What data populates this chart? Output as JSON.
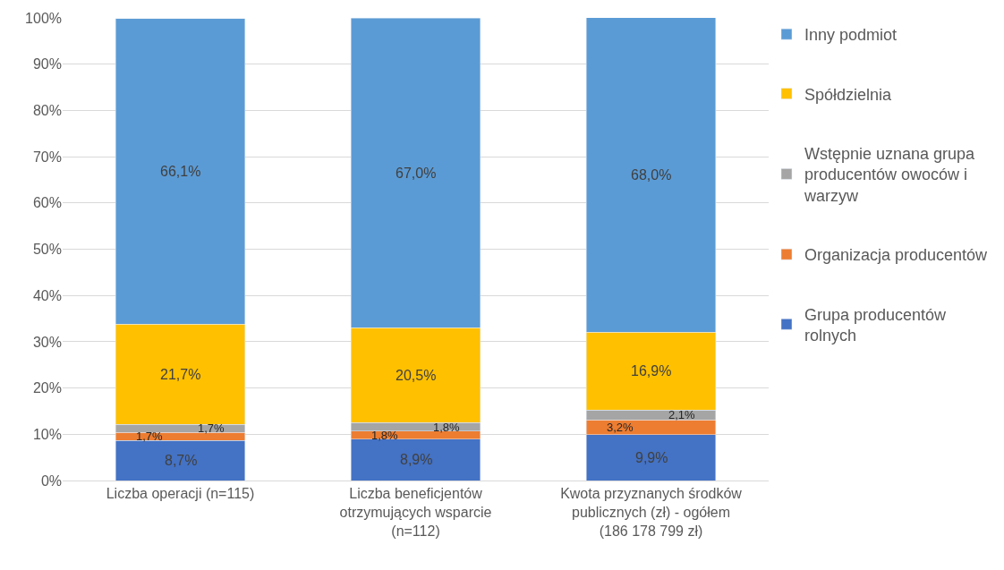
{
  "chart_data": {
    "type": "bar",
    "stacked": true,
    "categories": [
      "Liczba operacji (n=115)",
      "Liczba beneficjentów otrzymujących wsparcie (n=112)",
      "Kwota przyznanych środków publicznych (zł) - ogółem (186 178 799 zł)"
    ],
    "series": [
      {
        "name": "Grupa producentów rolnych",
        "color": "#4472c4",
        "values": [
          8.7,
          8.9,
          9.9
        ],
        "value_labels": [
          "8,7%",
          "8,9%",
          "9,9%"
        ]
      },
      {
        "name": "Organizacja producentów",
        "color": "#ed7d31",
        "values": [
          1.7,
          1.8,
          3.2
        ],
        "value_labels": [
          "1,7%",
          "1,8%",
          "3,2%"
        ]
      },
      {
        "name": "Wstępnie uznana grupa producentów owoców i warzyw",
        "color": "#a5a5a5",
        "values": [
          1.7,
          1.8,
          2.1
        ],
        "value_labels": [
          "1,7%",
          "1,8%",
          "2,1%"
        ]
      },
      {
        "name": "Spółdzielnia",
        "color": "#ffc000",
        "values": [
          21.7,
          20.5,
          16.9
        ],
        "value_labels": [
          "21,7%",
          "20,5%",
          "16,9%"
        ]
      },
      {
        "name": "Inny podmiot",
        "color": "#5b9bd5",
        "values": [
          66.1,
          67.0,
          68.0
        ],
        "value_labels": [
          "66,1%",
          "67,0%",
          "68,0%"
        ]
      }
    ],
    "ylim": [
      0,
      100
    ],
    "yticks": [
      {
        "value": 0,
        "label": "0%"
      },
      {
        "value": 10,
        "label": "10%"
      },
      {
        "value": 20,
        "label": "20%"
      },
      {
        "value": 30,
        "label": "30%"
      },
      {
        "value": 40,
        "label": "40%"
      },
      {
        "value": 50,
        "label": "50%"
      },
      {
        "value": 60,
        "label": "60%"
      },
      {
        "value": 70,
        "label": "70%"
      },
      {
        "value": 80,
        "label": "80%"
      },
      {
        "value": 90,
        "label": "90%"
      },
      {
        "value": 100,
        "label": "100%"
      }
    ],
    "grid": "y",
    "legend": "right"
  }
}
